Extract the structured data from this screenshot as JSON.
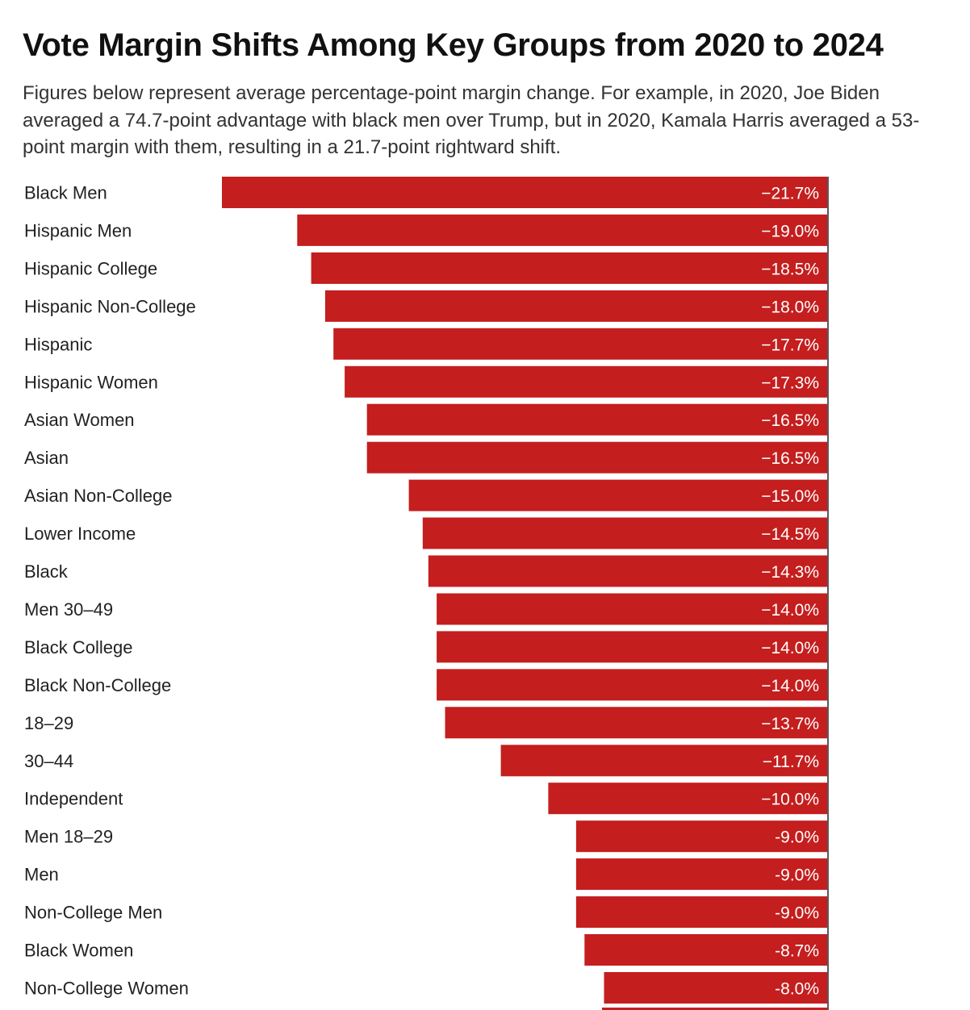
{
  "chart_data": {
    "type": "bar",
    "orientation": "horizontal",
    "title": "Vote Margin Shifts Among Key Groups from 2020 to 2024",
    "subtitle": "Figures below represent average percentage-point margin change. For example, in 2020, Joe Biden averaged a 74.7-point advantage with black men over Trump, but in 2020, Kamala Harris averaged a 53-point margin with them, resulting in a 21.7-point rightward shift.",
    "bar_color": "#c41e1e",
    "label_color": "#ffffff",
    "categories": [
      "Black Men",
      "Hispanic Men",
      "Hispanic College",
      "Hispanic Non-College",
      "Hispanic",
      "Hispanic Women",
      "Asian Women",
      "Asian",
      "Asian Non-College",
      "Lower Income",
      "Black",
      "Men 30–49",
      "Black College",
      "Black Non-College",
      "18–29",
      "30–44",
      "Independent",
      "Men 18–29",
      "Men",
      "Non-College Men",
      "Black Women",
      "Non-College Women"
    ],
    "values": [
      -21.7,
      -19.0,
      -18.5,
      -18.0,
      -17.7,
      -17.3,
      -16.5,
      -16.5,
      -15.0,
      -14.5,
      -14.3,
      -14.0,
      -14.0,
      -14.0,
      -13.7,
      -11.7,
      -10.0,
      -9.0,
      -9.0,
      -9.0,
      -8.7,
      -8.0
    ],
    "value_labels": [
      "−21.7%",
      "−19.0%",
      "−18.5%",
      "−18.0%",
      "−17.7%",
      "−17.3%",
      "−16.5%",
      "−16.5%",
      "−15.0%",
      "−14.5%",
      "−14.3%",
      "−14.0%",
      "−14.0%",
      "−14.0%",
      "−13.7%",
      "−11.7%",
      "−10.0%",
      "-9.0%",
      "-9.0%",
      "-9.0%",
      "-8.7%",
      "-8.0%"
    ],
    "xlim": [
      -21.7,
      0
    ],
    "grid": false,
    "legend": "none"
  }
}
